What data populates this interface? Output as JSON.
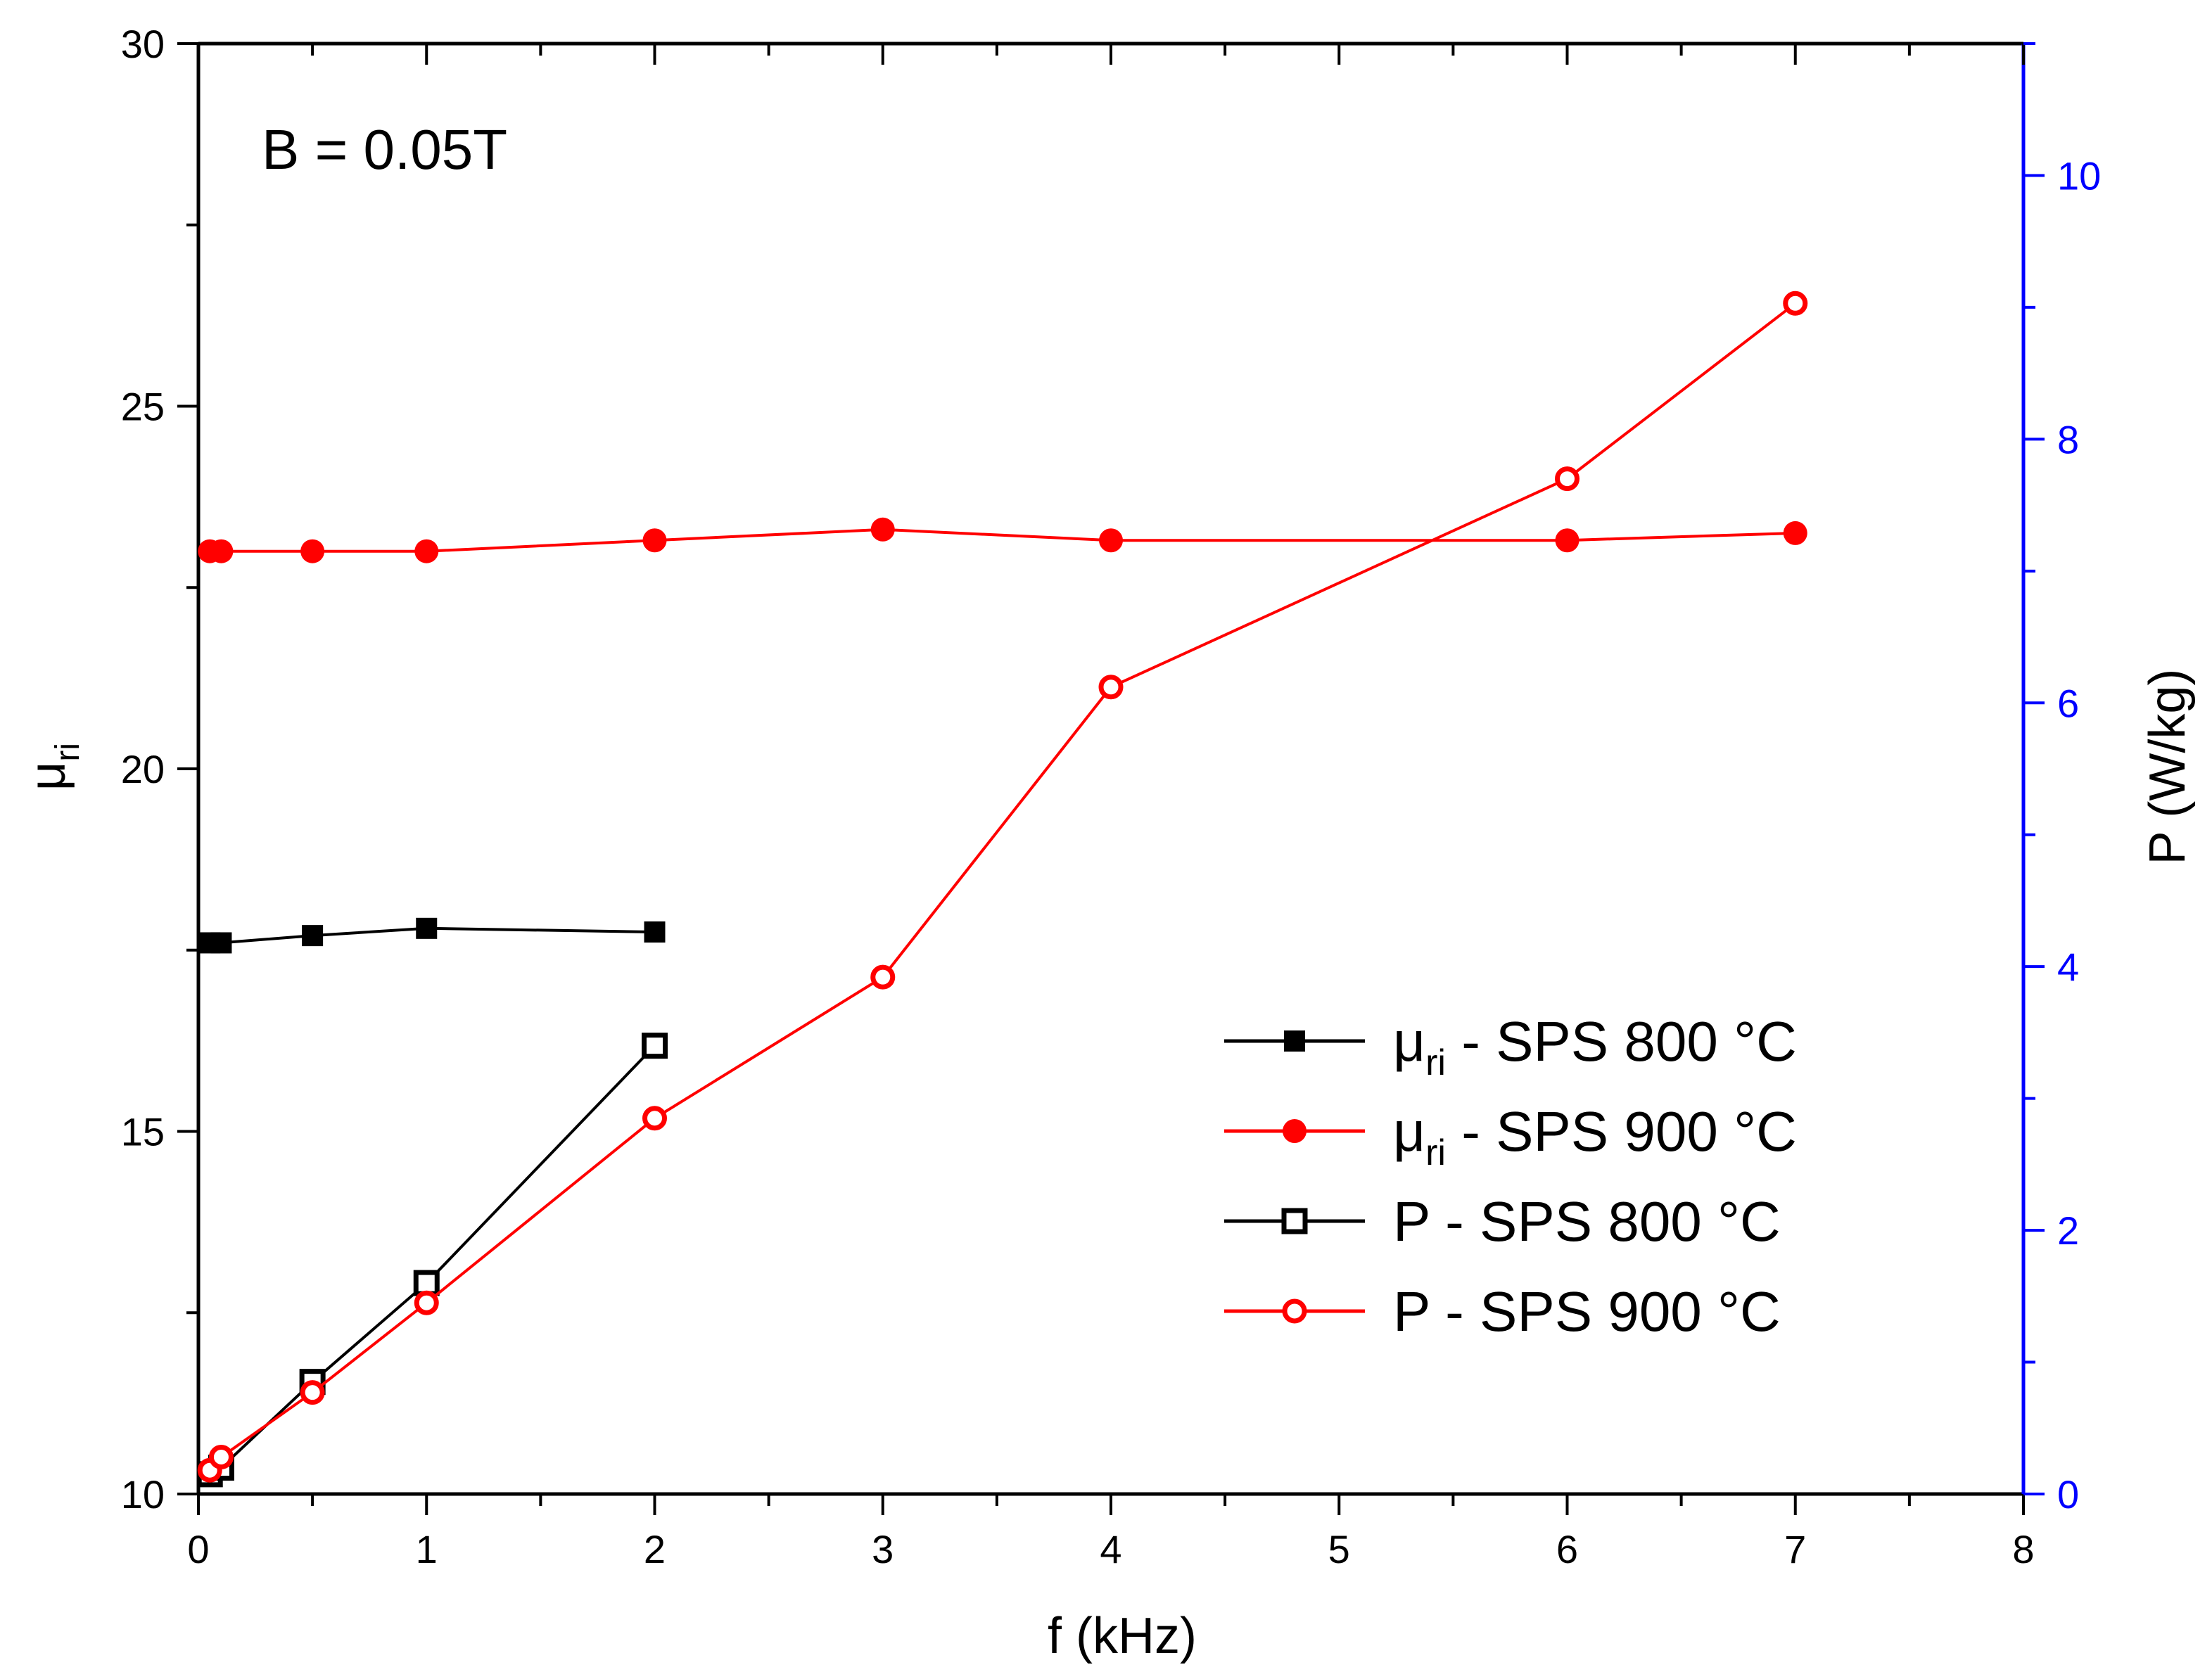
{
  "chart_data": {
    "type": "line",
    "annotation": "B = 0.05T",
    "xlabel": "f (kHz)",
    "ylabel_left": {
      "main": "μ",
      "sub": "ri"
    },
    "ylabel_right": "P (W/kg)",
    "xlim": [
      0,
      8
    ],
    "ylim_left": [
      10,
      30
    ],
    "ylim_right": [
      0,
      11
    ],
    "x_ticks": [
      "0",
      "1",
      "2",
      "3",
      "4",
      "5",
      "6",
      "7",
      "8"
    ],
    "y_left_ticks": [
      "10",
      "15",
      "20",
      "25",
      "30"
    ],
    "y_right_ticks": [
      "0",
      "2",
      "4",
      "6",
      "8",
      "10"
    ],
    "series": [
      {
        "name": "μri - SPS 800 °C",
        "legend": {
          "prefix": "μ",
          "sub": "ri",
          "suffix": " - SPS 800 °C"
        },
        "axis": "left",
        "color": "#000000",
        "marker": "square",
        "filled": true,
        "x": [
          0.05,
          0.1,
          0.5,
          1,
          2
        ],
        "y": [
          17.6,
          17.6,
          17.7,
          17.8,
          17.75
        ]
      },
      {
        "name": "μri - SPS 900 °C",
        "legend": {
          "prefix": "μ",
          "sub": "ri",
          "suffix": " - SPS 900 °C"
        },
        "axis": "left",
        "color": "#ff0000",
        "marker": "circle",
        "filled": true,
        "x": [
          0.05,
          0.1,
          0.5,
          1,
          2,
          3,
          4,
          6,
          7
        ],
        "y": [
          23.0,
          23.0,
          23.0,
          23.0,
          23.15,
          23.3,
          23.15,
          23.15,
          23.25
        ]
      },
      {
        "name": "P - SPS 800 °C",
        "legend": {
          "prefix": "P",
          "sub": "",
          "suffix": " - SPS 800 °C"
        },
        "axis": "right",
        "color": "#000000",
        "marker": "square",
        "filled": false,
        "x": [
          0.05,
          0.1,
          0.5,
          1,
          2
        ],
        "y": [
          0.15,
          0.2,
          0.85,
          1.6,
          3.4
        ]
      },
      {
        "name": "P - SPS 900 °C",
        "legend": {
          "prefix": "P",
          "sub": "",
          "suffix": " - SPS 900 °C"
        },
        "axis": "right",
        "color": "#ff0000",
        "marker": "circle",
        "filled": false,
        "x": [
          0.05,
          0.1,
          0.5,
          1,
          2,
          3,
          4,
          6,
          7
        ],
        "y": [
          0.18,
          0.28,
          0.77,
          1.45,
          2.85,
          3.92,
          6.12,
          7.7,
          9.03
        ]
      }
    ]
  }
}
